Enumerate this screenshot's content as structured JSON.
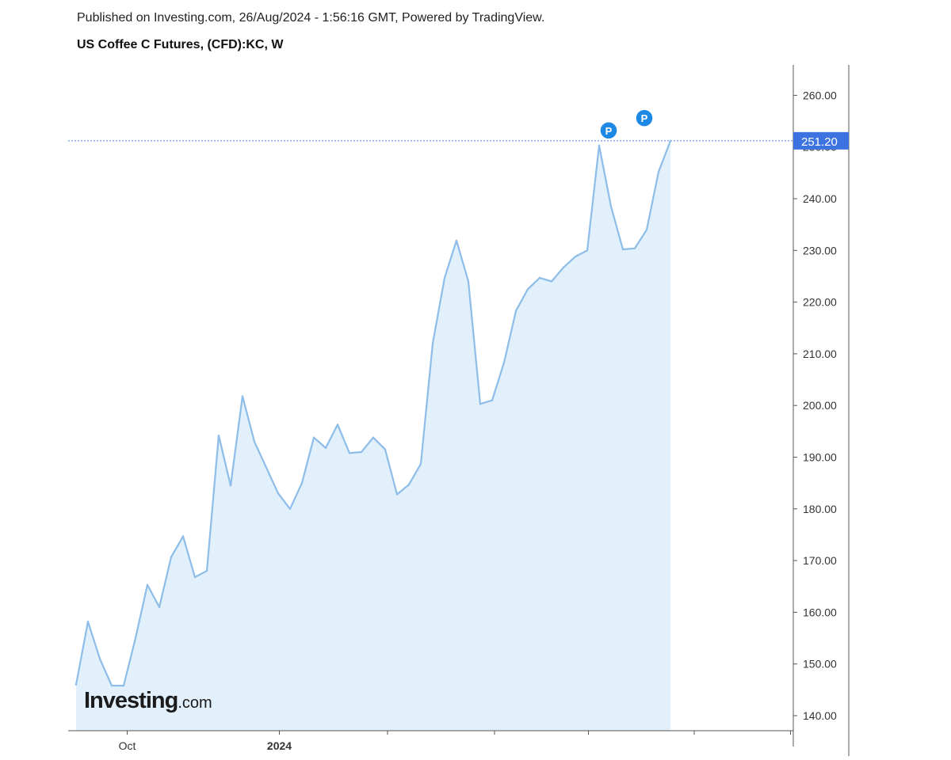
{
  "header": {
    "published": "Published on Investing.com, 26/Aug/2024 - 1:56:16 GMT, Powered by TradingView.",
    "title": "US Coffee C Futures, (CFD):KC, W"
  },
  "logo": {
    "brand": "Investing",
    "suffix": ".com"
  },
  "colors": {
    "line": "#8dbde8",
    "area": "#e1f0fa",
    "price_line": "#4a7fe0",
    "price_label_bg": "#3d73e0",
    "marker": "#1e88e5",
    "axis": "#333333",
    "tick_text": "#333333"
  },
  "chart_data": {
    "type": "area",
    "title": "US Coffee C Futures, (CFD):KC, W",
    "xlabel": "",
    "ylabel": "",
    "ylim": [
      136,
      262
    ],
    "y_ticks": [
      "140.00",
      "150.00",
      "160.00",
      "170.00",
      "180.00",
      "190.00",
      "200.00",
      "210.00",
      "220.00",
      "230.00",
      "240.00",
      "250.00",
      "260.00"
    ],
    "x_tick_labels": [
      {
        "label": "Oct",
        "index": 4.3,
        "bold": false
      },
      {
        "label": "2024",
        "index": 17.1,
        "bold": true
      }
    ],
    "x_minor_ticks": [
      26.2,
      35.2,
      43.1,
      52.0,
      60.1
    ],
    "current_price": 251.2,
    "current_price_label": "251.20",
    "markers": [
      {
        "label": "P",
        "index": 44.8,
        "value": 253.2
      },
      {
        "label": "P",
        "index": 47.8,
        "value": 255.6
      }
    ],
    "series": [
      {
        "values": [
          146.0,
          158.2,
          151.0,
          145.8,
          145.8,
          155.0,
          165.3,
          161.0,
          170.7,
          174.7,
          166.8,
          168.0,
          194.2,
          184.5,
          201.8,
          193.0,
          188.0,
          183.0,
          180.0,
          185.0,
          193.8,
          191.8,
          196.3,
          190.8,
          191.0,
          193.8,
          191.5,
          182.8,
          184.7,
          188.7,
          212.0,
          224.7,
          231.9,
          224.0,
          200.3,
          201.0,
          208.3,
          218.3,
          222.5,
          224.7,
          224.0,
          226.7,
          228.8,
          230.0,
          250.3,
          238.5,
          230.2,
          230.4,
          234.0,
          245.2,
          251.2
        ]
      }
    ]
  }
}
